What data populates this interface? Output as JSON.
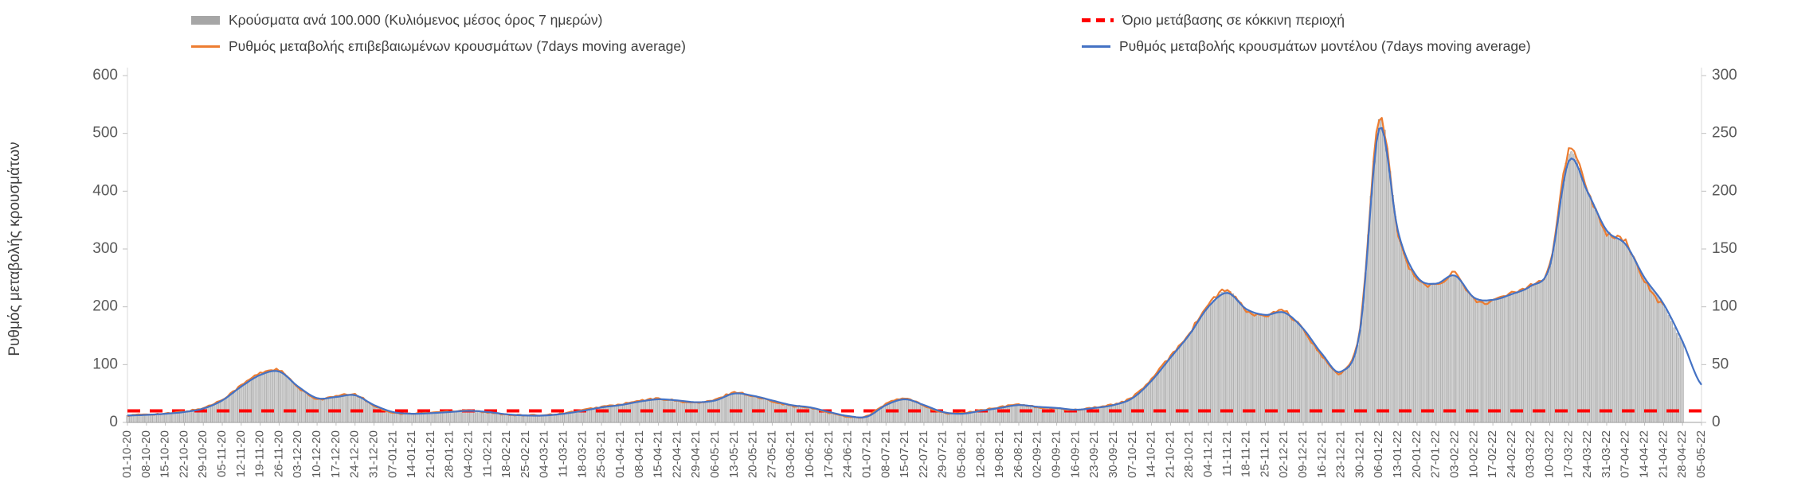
{
  "legend": {
    "cases_label": "Κρούσματα ανά 100.000 (Κυλιόμενος μέσος όρος 7 ημερών)",
    "confirmed_label": "Ρυθμός μεταβολής επιβεβαιωμένων κρουσμάτων (7days moving average)",
    "threshold_label": "Όριο μετάβασης σε κόκκινη περιοχή",
    "model_label": "Ρυθμός μεταβολής κρουσμάτων μοντέλου (7days moving average)"
  },
  "chart_data": {
    "type": "bar",
    "note": "combo chart: daily bars (right axis) + two 7-day moving-average lines (left axis) + constant red threshold (right axis)",
    "x_weekly_labels": [
      "01-10-20",
      "08-10-20",
      "15-10-20",
      "22-10-20",
      "29-10-20",
      "05-11-20",
      "12-11-20",
      "19-11-20",
      "26-11-20",
      "03-12-20",
      "10-12-20",
      "17-12-20",
      "24-12-20",
      "31-12-20",
      "07-01-21",
      "14-01-21",
      "21-01-21",
      "28-01-21",
      "04-02-21",
      "11-02-21",
      "18-02-21",
      "25-02-21",
      "04-03-21",
      "11-03-21",
      "18-03-21",
      "25-03-21",
      "01-04-21",
      "08-04-21",
      "15-04-21",
      "22-04-21",
      "29-04-21",
      "06-05-21",
      "13-05-21",
      "20-05-21",
      "27-05-21",
      "03-06-21",
      "10-06-21",
      "17-06-21",
      "24-06-21",
      "01-07-21",
      "08-07-21",
      "15-07-21",
      "22-07-21",
      "29-07-21",
      "05-08-21",
      "12-08-21",
      "19-08-21",
      "26-08-21",
      "02-09-21",
      "09-09-21",
      "16-09-21",
      "23-09-21",
      "30-09-21",
      "07-10-21",
      "14-10-21",
      "21-10-21",
      "28-10-21",
      "04-11-21",
      "11-11-21",
      "18-11-21",
      "25-11-21",
      "02-12-21",
      "09-12-21",
      "16-12-21",
      "23-12-21",
      "30-12-21",
      "06-01-22",
      "13-01-22",
      "20-01-22",
      "27-01-22",
      "03-02-22",
      "10-02-22",
      "17-02-22",
      "24-02-22",
      "03-03-22",
      "10-03-22",
      "17-03-22",
      "24-03-22",
      "31-03-22",
      "07-04-22",
      "14-04-22",
      "21-04-22",
      "28-04-22",
      "05-05-22"
    ],
    "left_axis": {
      "title": "Ρυθμός μεταβολής κρουσμάτων",
      "min": 0,
      "max": 600,
      "step": 100
    },
    "right_axis": {
      "min": 0,
      "max": 300,
      "step": 50
    },
    "series": [
      {
        "name": "Κρούσματα ανά 100.000 (Κυλιόμενος μέσος όρος 7 ημερών)",
        "type": "bar",
        "axis": "right",
        "color": "#d2d2d2",
        "stroke": "#909090",
        "values": [
          6,
          6.5,
          7.5,
          9,
          12,
          19,
          31,
          41,
          45,
          31,
          21,
          22,
          24,
          15,
          9,
          7.5,
          8,
          9,
          10,
          9,
          7,
          6,
          6,
          7.5,
          10,
          13,
          15,
          18,
          20,
          19,
          17.5,
          19,
          25,
          23,
          19,
          15,
          13,
          9,
          5.5,
          5,
          15,
          20,
          15,
          9,
          7.5,
          10,
          12.5,
          15,
          13.5,
          12.5,
          11,
          12.5,
          15,
          21,
          36,
          56,
          76,
          100,
          114,
          98,
          93,
          95,
          81,
          59,
          44,
          80,
          262,
          165,
          126,
          120,
          127,
          108,
          106,
          111,
          118,
          135,
          232,
          199,
          166,
          154,
          125,
          102,
          70,
          null
        ]
      },
      {
        "name": "Ρυθμός μεταβολής επιβεβαιωμένων κρουσμάτων (7days moving average)",
        "type": "line",
        "axis": "left",
        "color": "#ED7D31",
        "values": [
          12,
          14,
          15,
          19,
          25,
          40,
          64,
          85,
          90,
          60,
          41,
          45,
          48,
          29,
          17,
          15,
          17,
          19,
          21,
          17,
          14,
          12,
          13,
          16,
          21,
          27,
          31,
          37,
          41,
          37,
          34,
          39,
          52,
          45,
          37,
          29,
          25,
          17,
          10,
          11,
          32,
          41,
          29,
          17,
          16,
          21,
          26,
          31,
          26,
          24,
          22,
          26,
          31,
          44,
          75,
          115,
          155,
          204,
          228,
          193,
          184,
          192,
          159,
          115,
          86,
          165,
          525,
          325,
          248,
          238,
          257,
          213,
          210,
          224,
          239,
          274,
          468,
          402,
          328,
          312,
          246,
          202,
          null,
          null
        ]
      },
      {
        "name": "Όριο μετάβασης σε κόκκινη περιοχή",
        "type": "threshold",
        "axis": "right",
        "color": "#FF0000",
        "value": 10
      },
      {
        "name": "Ρυθμός μεταβολής κρουσμάτων μοντέλου (7days moving average)",
        "type": "line",
        "axis": "left",
        "color": "#4472C4",
        "values": [
          12,
          13,
          15,
          18,
          24,
          38,
          62,
          82,
          88,
          62,
          42,
          44,
          47,
          30,
          18,
          15,
          16,
          18,
          20,
          18,
          14,
          12,
          12,
          15,
          20,
          26,
          30,
          36,
          40,
          38,
          35,
          38,
          50,
          46,
          38,
          30,
          26,
          18,
          11,
          10,
          30,
          40,
          30,
          18,
          15,
          20,
          25,
          30,
          27,
          25,
          22,
          25,
          30,
          42,
          72,
          112,
          152,
          200,
          224,
          196,
          186,
          190,
          162,
          118,
          88,
          160,
          508,
          330,
          252,
          240,
          254,
          216,
          212,
          222,
          236,
          270,
          452,
          398,
          332,
          308,
          250,
          205,
          140,
          65
        ]
      }
    ],
    "axis_text_color": "#595959",
    "axis_line_color": "#bfbfbf"
  }
}
